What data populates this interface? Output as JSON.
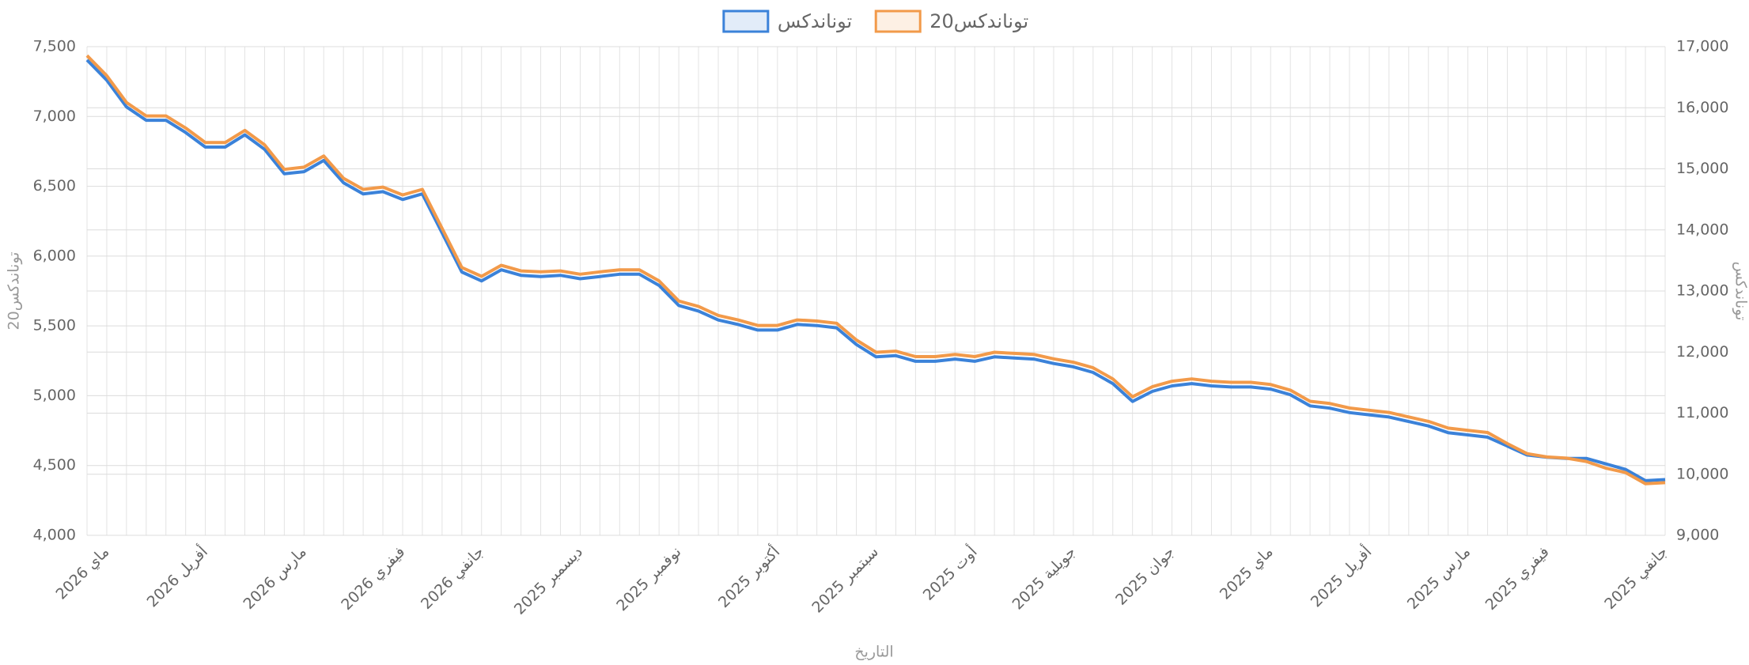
{
  "chart_data": {
    "type": "line",
    "legend": "top",
    "grid": true,
    "xlabel": "التاريخ",
    "ylabel": "توناندكس20",
    "y2label": "توناندكس",
    "categories": [
      null,
      "ماي 2026",
      null,
      null,
      null,
      null,
      "أفريل 2026",
      null,
      null,
      null,
      null,
      "مارس 2026",
      null,
      null,
      null,
      null,
      "فيفري 2026",
      null,
      null,
      null,
      "جانفي 2026",
      null,
      null,
      null,
      null,
      "ديسمبر 2025",
      null,
      null,
      null,
      null,
      "نوفمبر 2025",
      null,
      null,
      null,
      null,
      "أكتوبر 2025",
      null,
      null,
      null,
      null,
      "سبتمبر 2025",
      null,
      null,
      null,
      null,
      "أوت 2025",
      null,
      null,
      null,
      null,
      "جويلية 2025",
      null,
      null,
      null,
      null,
      "جوان 2025",
      null,
      null,
      null,
      null,
      "ماي 2025",
      null,
      null,
      null,
      null,
      "أفريل 2025",
      null,
      null,
      null,
      null,
      "مارس 2025",
      null,
      null,
      null,
      "فيفري 2025",
      null,
      null,
      null,
      null,
      null,
      "جانفي 2025"
    ],
    "ylim": [
      4000,
      7500
    ],
    "yticks": [
      {
        "value": 4000,
        "label": "4,000"
      },
      {
        "value": 4500,
        "label": "4,500"
      },
      {
        "value": 5000,
        "label": "5,000"
      },
      {
        "value": 5500,
        "label": "5,500"
      },
      {
        "value": 6000,
        "label": "6,000"
      },
      {
        "value": 6500,
        "label": "6,500"
      },
      {
        "value": 7000,
        "label": "7,000"
      },
      {
        "value": 7500,
        "label": "7,500"
      }
    ],
    "y2lim": [
      9000,
      17000
    ],
    "y2ticks": [
      {
        "value": 9000,
        "label": "9,000"
      },
      {
        "value": 10000,
        "label": "10,000"
      },
      {
        "value": 11000,
        "label": "11,000"
      },
      {
        "value": 12000,
        "label": "12,000"
      },
      {
        "value": 13000,
        "label": "13,000"
      },
      {
        "value": 14000,
        "label": "14,000"
      },
      {
        "value": 15000,
        "label": "15,000"
      },
      {
        "value": 16000,
        "label": "16,000"
      },
      {
        "value": 17000,
        "label": "17,000"
      }
    ],
    "series": [
      {
        "name": "توناندكس",
        "color": "#3b82d9",
        "axis": "y2",
        "values": [
          16781,
          16452,
          16014,
          15795,
          15795,
          15594,
          15356,
          15356,
          15557,
          15320,
          14918,
          14954,
          15137,
          14772,
          14589,
          14626,
          14498,
          14589,
          13950,
          13311,
          13164,
          13347,
          13256,
          13237,
          13256,
          13201,
          13237,
          13274,
          13274,
          13091,
          12763,
          12671,
          12525,
          12452,
          12361,
          12361,
          12452,
          12434,
          12397,
          12123,
          11922,
          11941,
          11849,
          11849,
          11886,
          11849,
          11922,
          11904,
          11886,
          11813,
          11758,
          11667,
          11484,
          11192,
          11356,
          11447,
          11484,
          11447,
          11429,
          11429,
          11393,
          11301,
          11119,
          11082,
          11009,
          10973,
          10936,
          10863,
          10790,
          10680,
          10644,
          10607,
          10461,
          10315,
          10279,
          10260,
          10260,
          10169,
          10078,
          9895,
          9913
        ]
      },
      {
        "name": "توناندكس20",
        "color": "#f29a4a",
        "axis": "y",
        "values": [
          7436,
          7292,
          7100,
          7004,
          7004,
          6917,
          6813,
          6813,
          6900,
          6797,
          6621,
          6637,
          6717,
          6557,
          6478,
          6494,
          6438,
          6478,
          6198,
          5918,
          5855,
          5934,
          5894,
          5887,
          5894,
          5870,
          5887,
          5902,
          5902,
          5822,
          5678,
          5639,
          5575,
          5543,
          5503,
          5503,
          5543,
          5535,
          5519,
          5399,
          5311,
          5319,
          5280,
          5280,
          5296,
          5280,
          5311,
          5303,
          5296,
          5264,
          5240,
          5200,
          5120,
          4992,
          5064,
          5104,
          5120,
          5104,
          5096,
          5096,
          5080,
          5040,
          4960,
          4944,
          4912,
          4896,
          4880,
          4848,
          4816,
          4768,
          4752,
          4736,
          4657,
          4585,
          4561,
          4553,
          4529,
          4481,
          4449,
          4369,
          4377
        ]
      }
    ]
  }
}
